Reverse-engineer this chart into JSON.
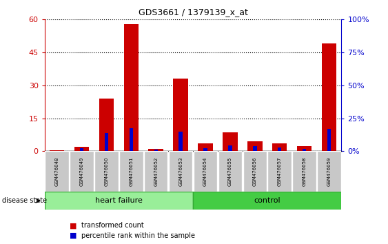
{
  "title": "GDS3661 / 1379139_x_at",
  "samples": [
    "GSM476048",
    "GSM476049",
    "GSM476050",
    "GSM476051",
    "GSM476052",
    "GSM476053",
    "GSM476054",
    "GSM476055",
    "GSM476056",
    "GSM476057",
    "GSM476058",
    "GSM476059"
  ],
  "transformed_count": [
    0.5,
    2.0,
    24.0,
    58.0,
    1.2,
    33.0,
    3.5,
    8.5,
    4.5,
    3.5,
    2.5,
    49.0
  ],
  "percentile_rank": [
    0.5,
    2.5,
    14.0,
    17.5,
    1.5,
    15.0,
    2.5,
    4.5,
    4.0,
    3.0,
    2.0,
    17.0
  ],
  "ylim_left": [
    0,
    60
  ],
  "ylim_right": [
    0,
    100
  ],
  "yticks_left": [
    0,
    15,
    30,
    45,
    60
  ],
  "yticks_right": [
    0,
    25,
    50,
    75,
    100
  ],
  "bar_color_red": "#cc0000",
  "bar_color_blue": "#0000cc",
  "heart_failure_color": "#99ee99",
  "control_color": "#44cc44",
  "left_axis_color": "#cc0000",
  "right_axis_color": "#0000cc",
  "n_heart_failure": 6,
  "n_control": 6
}
